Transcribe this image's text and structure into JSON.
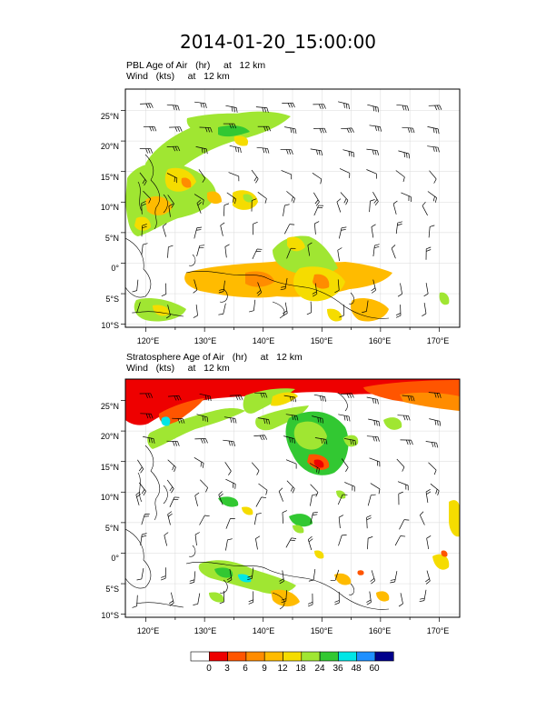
{
  "title": "2014-01-20_15:00:00",
  "panels": [
    {
      "id": "pbl",
      "line1": "PBL Age of Air   (hr)     at   12 km",
      "line2": "Wind   (kts)     at   12 km",
      "lat_labels": [
        "25°N",
        "20°N",
        "15°N",
        "10°N",
        "5°N",
        "0°",
        "5°S",
        "10°S"
      ],
      "lon_labels": [
        "120°E",
        "130°E",
        "140°E",
        "150°E",
        "160°E",
        "170°E"
      ]
    },
    {
      "id": "strat",
      "line1": "Stratosphere Age of Air   (hr)     at   12 km",
      "line2": "Wind   (kts)     at   12 km",
      "lat_labels": [
        "25°N",
        "20°N",
        "15°N",
        "10°N",
        "5°N",
        "0°",
        "5°S",
        "10°S"
      ],
      "lon_labels": [
        "120°E",
        "130°E",
        "140°E",
        "150°E",
        "160°E",
        "170°E"
      ]
    }
  ],
  "map": {
    "lon_range": [
      116.5,
      173.5
    ],
    "lat_range": [
      -10.5,
      28.5
    ]
  },
  "colorbar": {
    "labels": [
      "0",
      "3",
      "6",
      "9",
      "12",
      "18",
      "24",
      "36",
      "48",
      "60"
    ],
    "colors": [
      "#ffffff",
      "#ee0000",
      "#ff5500",
      "#ff8c00",
      "#ffbb00",
      "#f5dc00",
      "#a0e632",
      "#32c832",
      "#00e6e6",
      "#1e90ff",
      "#00008b"
    ]
  }
}
